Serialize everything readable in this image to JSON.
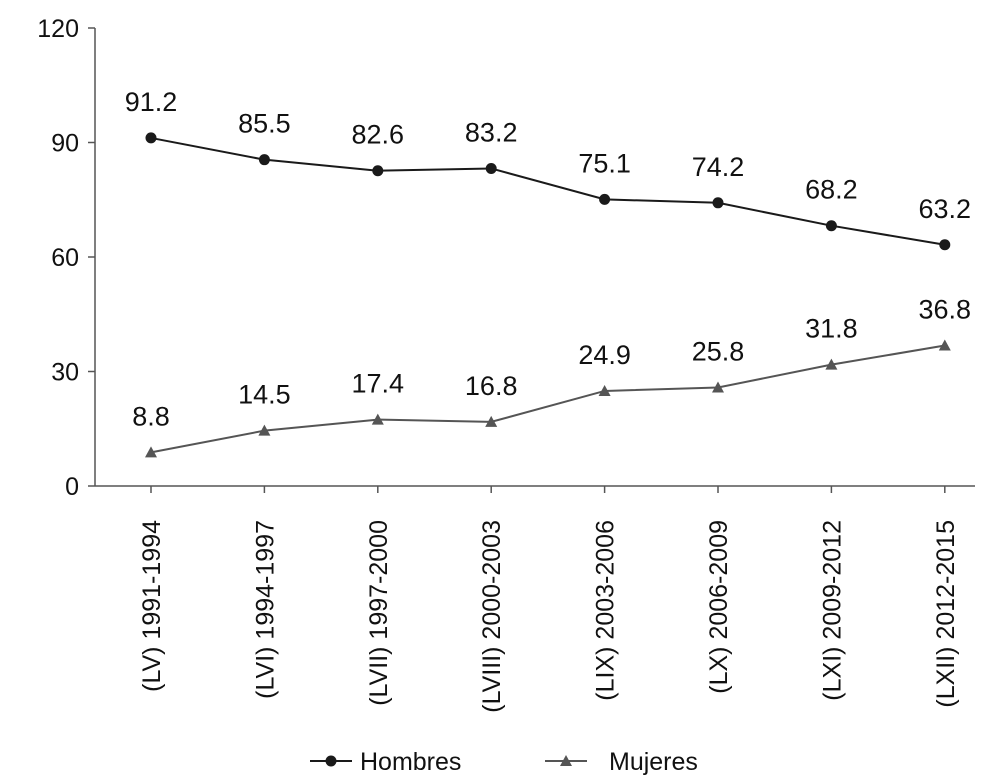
{
  "chart_data": {
    "type": "line",
    "categories": [
      "(LV) 1991-1994",
      "(LVI) 1994-1997",
      "(LVII) 1997-2000",
      "(LVIII) 2000-2003",
      "(LIX) 2003-2006",
      "(LX) 2006-2009",
      "(LXI) 2009-2012",
      "(LXII) 2012-2015"
    ],
    "series": [
      {
        "name": "Hombres",
        "values": [
          91.2,
          85.5,
          82.6,
          83.2,
          75.1,
          74.2,
          68.2,
          63.2
        ],
        "labels": [
          "91.2",
          "85.5",
          "82.6",
          "83.2",
          "75.1",
          "74.2",
          "68.2",
          "63.2"
        ],
        "marker": "circle",
        "color": "#1a1a1a"
      },
      {
        "name": "Mujeres",
        "values": [
          8.8,
          14.5,
          17.4,
          16.8,
          24.9,
          25.8,
          31.8,
          36.8
        ],
        "labels": [
          "8.8",
          "14.5",
          "17.4",
          "16.8",
          "24.9",
          "25.8",
          "31.8",
          "36.8"
        ],
        "marker": "triangle",
        "color": "#555555"
      }
    ],
    "yticks": [
      0,
      30,
      60,
      90,
      120
    ],
    "ytick_labels": [
      "0",
      "30",
      "60",
      "90",
      "120"
    ],
    "ylim": [
      0,
      120
    ],
    "grid": false,
    "legend_position": "bottom",
    "title": "",
    "xlabel": "",
    "ylabel": ""
  }
}
